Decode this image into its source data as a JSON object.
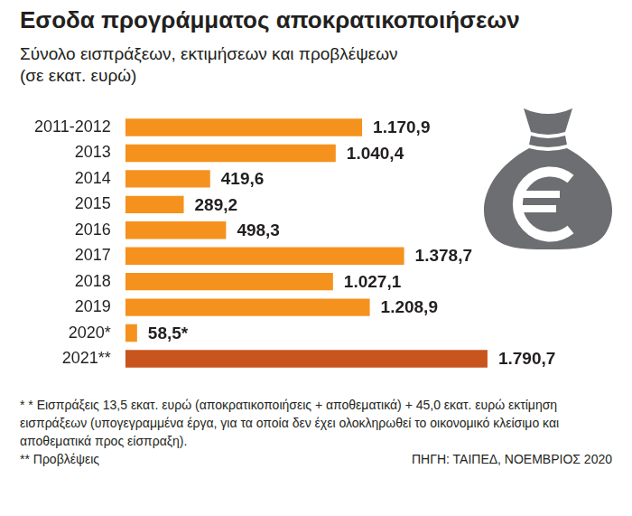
{
  "chart_data": {
    "type": "bar",
    "orientation": "horizontal",
    "title": "Εσοδα προγράμματος αποκρατικοποιήσεων",
    "subtitle": [
      "Σύνολο εισπράξεων, εκτιμήσεων και προβλέψεων",
      "(σε εκατ. ευρώ)"
    ],
    "categories": [
      "2011-2012",
      "2013",
      "2014",
      "2015",
      "2016",
      "2017",
      "2018",
      "2019",
      "2020*",
      "2021**"
    ],
    "values": [
      1170.9,
      1040.4,
      419.6,
      289.2,
      498.3,
      1378.7,
      1027.1,
      1208.9,
      58.5,
      1790.7
    ],
    "value_labels": [
      "1.170,9",
      "1.040,4",
      "419,6",
      "289,2",
      "498,3",
      "1.378,7",
      "1.027,1",
      "1.208,9",
      "58,5*",
      "1.790,7"
    ],
    "colors": [
      "#f5921e",
      "#f5921e",
      "#f5921e",
      "#f5921e",
      "#f5921e",
      "#f5921e",
      "#f5921e",
      "#f5921e",
      "#f5921e",
      "#c8541e"
    ],
    "xlim": [
      0,
      1800
    ],
    "grid": false,
    "data_labels": true,
    "tick_labels": "y",
    "annotations": [
      "* * Εισπράξεις 13,5 εκατ. ευρώ (αποκρατικοποιήσεις + αποθεματικά) + 45,0 εκατ. ευρώ εκτίμηση εισπράξεων (υπογεγραμμένα έργα, για τα οποία δεν έχει ολοκληρωθεί το οικονομικό κλείσιμο και αποθεματικά προς είσπραξη).",
      "** Προβλέψεις"
    ],
    "source": "ΠΗΓΗ: ΤΑΙΠΕΔ, ΝΟΕΜΒΡΙΟΣ 2020"
  }
}
